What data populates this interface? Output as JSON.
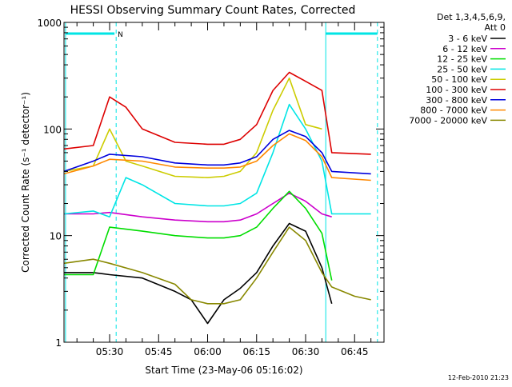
{
  "chart_data": {
    "type": "line",
    "title": "HESSI Observing Summary Count Rates, Corrected",
    "xlabel": "Start Time (23-May-06 05:16:02)",
    "ylabel": "Corrected Count Rate (s⁻¹ detector⁻¹)",
    "yscale": "log",
    "ylim": [
      1,
      1000
    ],
    "xlim": [
      "05:16:02",
      "06:54:00"
    ],
    "x_ticks": [
      "05:30",
      "05:45",
      "06:00",
      "06:15",
      "06:30",
      "06:45"
    ],
    "y_ticks": [
      "1",
      "10",
      "100",
      "1000"
    ],
    "legend_position": "right",
    "legend_header": [
      "Det 1,3,4,5,6,9,",
      "Att 0"
    ],
    "footer": "12-Feb-2010 21:23",
    "markers": {
      "vertical_solid_lines": [
        "05:16:30",
        "06:36:10"
      ],
      "vertical_dashed_lines": [
        "05:32:00",
        "06:52:00"
      ],
      "top_bars": [
        {
          "start": "05:16:30",
          "end": "05:31:30",
          "label": "N"
        },
        {
          "start": "06:36:10",
          "end": "06:52:00",
          "label": ""
        }
      ]
    },
    "series": [
      {
        "name": "3 - 6 keV",
        "color": "#000000",
        "x": [
          "05:16",
          "05:25",
          "05:30",
          "05:40",
          "05:50",
          "05:55",
          "06:00",
          "06:05",
          "06:10",
          "06:15",
          "06:20",
          "06:25",
          "06:30",
          "06:35",
          "06:38"
        ],
        "values": [
          4.5,
          4.5,
          4.3,
          4.0,
          3.0,
          2.5,
          1.5,
          2.5,
          3.2,
          4.5,
          8.0,
          13.0,
          11.0,
          5.0,
          2.3
        ]
      },
      {
        "name": "6 - 12 keV",
        "color": "#cc00cc",
        "x": [
          "05:16",
          "05:25",
          "05:30",
          "05:40",
          "05:50",
          "06:00",
          "06:05",
          "06:10",
          "06:15",
          "06:20",
          "06:25",
          "06:30",
          "06:35",
          "06:38"
        ],
        "values": [
          16,
          16,
          16.5,
          15,
          14,
          13.5,
          13.5,
          14,
          16,
          20,
          25,
          21,
          16,
          15
        ]
      },
      {
        "name": "12 - 25 keV",
        "color": "#00dd00",
        "x": [
          "05:16",
          "05:25",
          "05:30",
          "05:40",
          "05:50",
          "06:00",
          "06:05",
          "06:10",
          "06:15",
          "06:20",
          "06:25",
          "06:30",
          "06:35",
          "06:38"
        ],
        "values": [
          4.3,
          4.3,
          12,
          11,
          10,
          9.5,
          9.5,
          10,
          12,
          18,
          26,
          18,
          10.5,
          3.8
        ]
      },
      {
        "name": "25 - 50 keV",
        "color": "#00e5e5",
        "x": [
          "05:16",
          "05:25",
          "05:30",
          "05:35",
          "05:40",
          "05:50",
          "06:00",
          "06:05",
          "06:10",
          "06:15",
          "06:20",
          "06:25",
          "06:30",
          "06:35",
          "06:38",
          "06:50"
        ],
        "values": [
          16,
          17,
          15,
          35,
          30,
          20,
          19,
          19,
          20,
          25,
          60,
          170,
          100,
          50,
          16,
          16
        ]
      },
      {
        "name": "50 - 100 keV",
        "color": "#cccc00",
        "x": [
          "05:16",
          "05:25",
          "05:30",
          "05:35",
          "05:40",
          "05:50",
          "06:00",
          "06:05",
          "06:10",
          "06:15",
          "06:20",
          "06:25",
          "06:30",
          "06:35"
        ],
        "values": [
          40,
          45,
          100,
          50,
          45,
          36,
          35,
          36,
          40,
          60,
          150,
          300,
          110,
          100
        ]
      },
      {
        "name": "100 - 300 keV",
        "color": "#dd0000",
        "x": [
          "05:16",
          "05:25",
          "05:30",
          "05:35",
          "05:40",
          "05:50",
          "06:00",
          "06:05",
          "06:10",
          "06:15",
          "06:20",
          "06:25",
          "06:30",
          "06:35",
          "06:38",
          "06:50"
        ],
        "values": [
          65,
          70,
          200,
          160,
          100,
          75,
          72,
          72,
          80,
          110,
          230,
          340,
          280,
          230,
          60,
          58
        ]
      },
      {
        "name": "300 - 800 keV",
        "color": "#0000dd",
        "x": [
          "05:16",
          "05:25",
          "05:30",
          "05:40",
          "05:50",
          "06:00",
          "06:05",
          "06:10",
          "06:15",
          "06:20",
          "06:25",
          "06:30",
          "06:35",
          "06:38",
          "06:50"
        ],
        "values": [
          40,
          50,
          58,
          55,
          48,
          46,
          46,
          48,
          55,
          80,
          97,
          85,
          60,
          40,
          38
        ]
      },
      {
        "name": "800 - 7000 keV",
        "color": "#ff8800",
        "x": [
          "05:16",
          "05:25",
          "05:30",
          "05:40",
          "05:50",
          "06:00",
          "06:05",
          "06:10",
          "06:15",
          "06:20",
          "06:25",
          "06:30",
          "06:35",
          "06:38",
          "06:50"
        ],
        "values": [
          38,
          45,
          52,
          50,
          44,
          43,
          43,
          44,
          50,
          70,
          90,
          78,
          55,
          35,
          33
        ]
      },
      {
        "name": "7000 - 20000 keV",
        "color": "#888800",
        "x": [
          "05:16",
          "05:25",
          "05:30",
          "05:40",
          "05:50",
          "05:55",
          "06:00",
          "06:05",
          "06:10",
          "06:15",
          "06:20",
          "06:25",
          "06:30",
          "06:35",
          "06:38",
          "06:45",
          "06:50"
        ],
        "values": [
          5.5,
          6.0,
          5.5,
          4.5,
          3.5,
          2.5,
          2.3,
          2.3,
          2.5,
          4.0,
          7.0,
          12.0,
          9.0,
          4.5,
          3.3,
          2.7,
          2.5
        ]
      }
    ]
  }
}
